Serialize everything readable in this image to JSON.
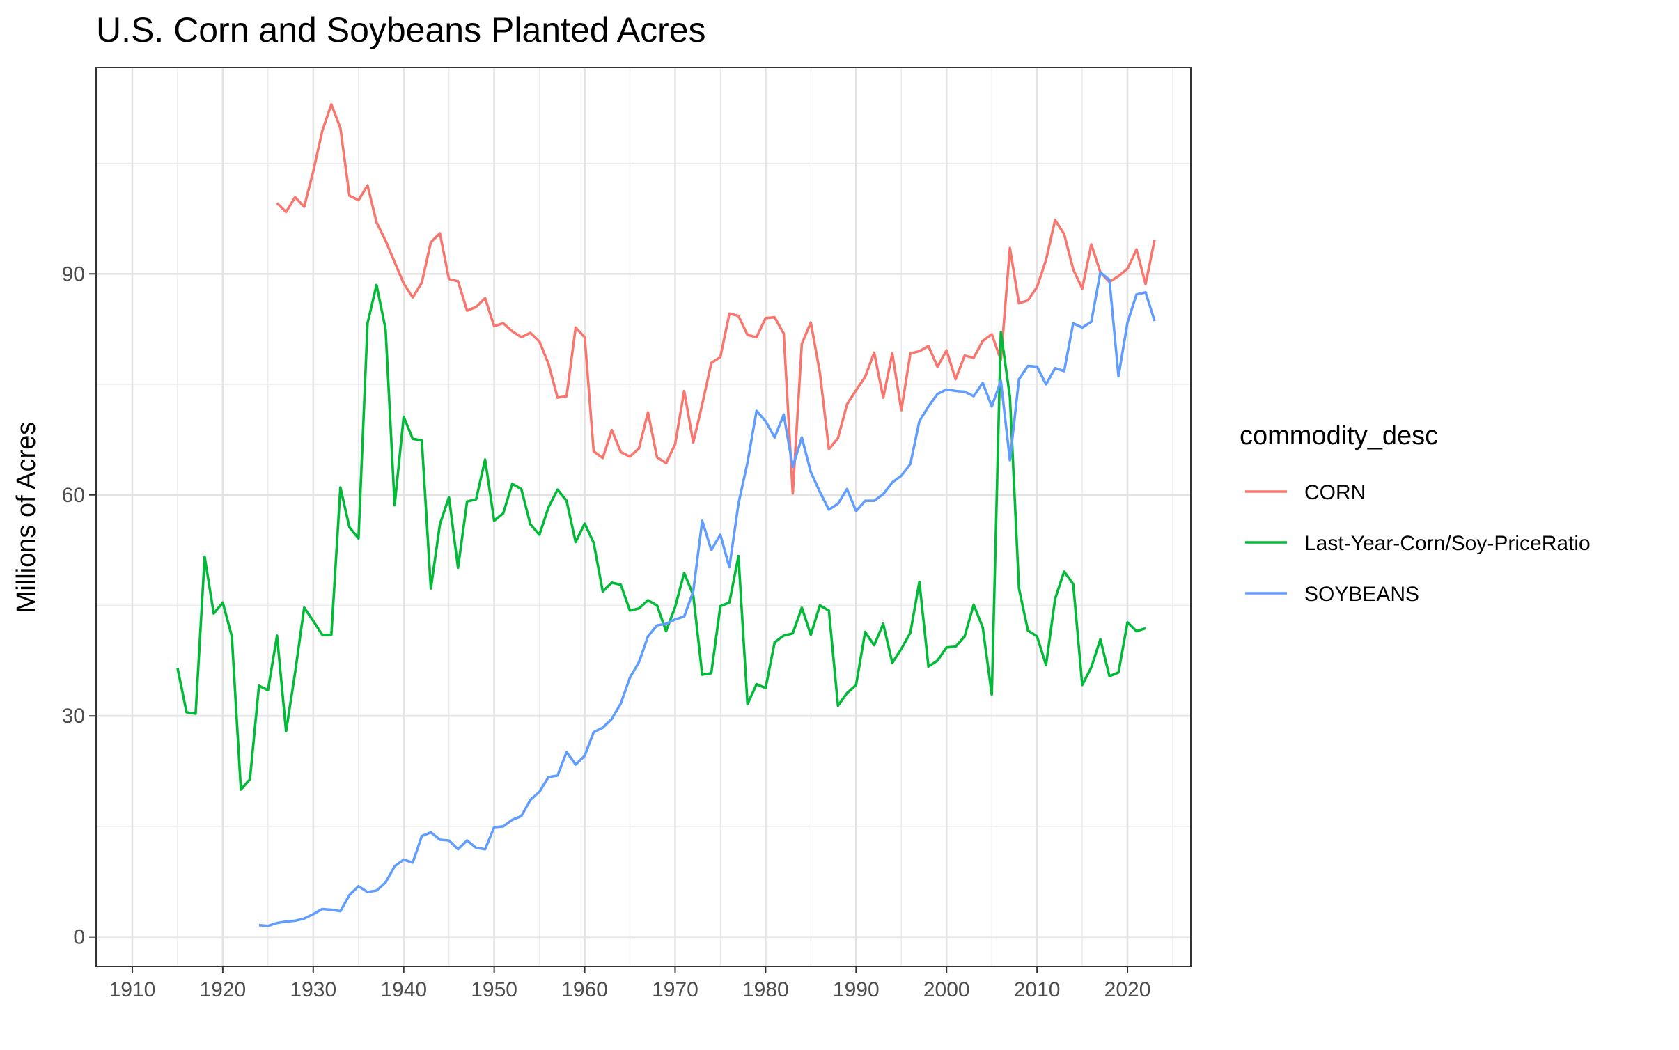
{
  "chart_data": {
    "type": "line",
    "title": "U.S. Corn and Soybeans Planted Acres",
    "xlabel": "",
    "ylabel": "Millions of Acres",
    "xlim": [
      1906,
      2027
    ],
    "ylim": [
      -4,
      118
    ],
    "x_ticks": [
      1910,
      1920,
      1930,
      1940,
      1950,
      1960,
      1970,
      1980,
      1990,
      2000,
      2010,
      2020
    ],
    "x_tick_labels": [
      "1910",
      "1920",
      "1930",
      "1940",
      "1950",
      "1960",
      "1970",
      "1980",
      "1990",
      "2000",
      "2010",
      "2020"
    ],
    "x_minor_ticks": [
      1905,
      1915,
      1925,
      1935,
      1945,
      1955,
      1965,
      1975,
      1985,
      1995,
      2005,
      2015,
      2025
    ],
    "y_ticks": [
      0,
      30,
      60,
      90
    ],
    "y_tick_labels": [
      "0",
      "30",
      "60",
      "90"
    ],
    "y_minor_ticks": [
      15,
      45,
      75,
      105
    ],
    "grid": true,
    "legend": {
      "title": "commodity_desc",
      "position": "right"
    },
    "series": [
      {
        "name": "CORN",
        "color": "#F8766D",
        "x": [
          1926,
          1927,
          1928,
          1929,
          1930,
          1931,
          1932,
          1933,
          1934,
          1935,
          1936,
          1937,
          1938,
          1939,
          1940,
          1941,
          1942,
          1943,
          1944,
          1945,
          1946,
          1947,
          1948,
          1949,
          1950,
          1951,
          1952,
          1953,
          1954,
          1955,
          1956,
          1957,
          1958,
          1959,
          1960,
          1961,
          1962,
          1963,
          1964,
          1965,
          1966,
          1967,
          1968,
          1969,
          1970,
          1971,
          1972,
          1973,
          1974,
          1975,
          1976,
          1977,
          1978,
          1979,
          1980,
          1981,
          1982,
          1983,
          1984,
          1985,
          1986,
          1987,
          1988,
          1989,
          1990,
          1991,
          1992,
          1993,
          1994,
          1995,
          1996,
          1997,
          1998,
          1999,
          2000,
          2001,
          2002,
          2003,
          2004,
          2005,
          2006,
          2007,
          2008,
          2009,
          2010,
          2011,
          2012,
          2013,
          2014,
          2015,
          2016,
          2017,
          2018,
          2019,
          2020,
          2021,
          2022,
          2023
        ],
        "values": [
          99.6,
          98.4,
          100.4,
          99.1,
          103.9,
          109.4,
          113.0,
          109.8,
          100.6,
          100.0,
          102.0,
          97.0,
          94.5,
          91.6,
          88.7,
          86.8,
          88.8,
          94.3,
          95.5,
          89.3,
          89.0,
          85.0,
          85.5,
          86.7,
          82.9,
          83.3,
          82.2,
          81.4,
          82.0,
          80.8,
          77.8,
          73.2,
          73.4,
          82.7,
          81.4,
          65.9,
          65.0,
          68.8,
          65.8,
          65.2,
          66.3,
          71.2,
          65.1,
          64.3,
          66.9,
          74.1,
          67.1,
          72.3,
          77.9,
          78.7,
          84.6,
          84.3,
          81.7,
          81.4,
          84.0,
          84.1,
          81.9,
          60.2,
          80.5,
          83.4,
          76.6,
          66.2,
          67.7,
          72.3,
          74.2,
          76.0,
          79.3,
          73.2,
          79.2,
          71.5,
          79.2,
          79.5,
          80.2,
          77.4,
          79.6,
          75.7,
          78.9,
          78.6,
          80.9,
          81.8,
          78.3,
          93.5,
          86.0,
          86.4,
          88.2,
          91.9,
          97.3,
          95.4,
          90.6,
          88.0,
          94.0,
          90.2,
          88.9,
          89.7,
          90.7,
          93.3,
          88.6,
          94.6
        ]
      },
      {
        "name": "Last-Year-Corn/Soy-PriceRatio",
        "color": "#00BA38",
        "x": [
          1915,
          1916,
          1917,
          1918,
          1919,
          1920,
          1921,
          1922,
          1923,
          1924,
          1925,
          1926,
          1927,
          1928,
          1929,
          1930,
          1931,
          1932,
          1933,
          1934,
          1935,
          1936,
          1937,
          1938,
          1939,
          1940,
          1941,
          1942,
          1943,
          1944,
          1945,
          1946,
          1947,
          1948,
          1949,
          1950,
          1951,
          1952,
          1953,
          1954,
          1955,
          1956,
          1957,
          1958,
          1959,
          1960,
          1961,
          1962,
          1963,
          1964,
          1965,
          1966,
          1967,
          1968,
          1969,
          1970,
          1971,
          1972,
          1973,
          1974,
          1975,
          1976,
          1977,
          1978,
          1979,
          1980,
          1981,
          1982,
          1983,
          1984,
          1985,
          1986,
          1987,
          1988,
          1989,
          1990,
          1991,
          1992,
          1993,
          1994,
          1995,
          1996,
          1997,
          1998,
          1999,
          2000,
          2001,
          2002,
          2003,
          2004,
          2005,
          2006,
          2007,
          2008,
          2009,
          2010,
          2011,
          2012,
          2013,
          2014,
          2015,
          2016,
          2017,
          2018,
          2019,
          2020,
          2021,
          2022
        ],
        "values": [
          36.5,
          30.5,
          30.3,
          51.6,
          43.9,
          45.4,
          40.8,
          20.0,
          21.4,
          34.1,
          33.5,
          40.9,
          27.9,
          35.9,
          44.7,
          42.9,
          41.0,
          41.0,
          61.0,
          55.6,
          54.1,
          83.3,
          88.5,
          82.5,
          58.6,
          70.6,
          67.6,
          67.4,
          47.3,
          56.0,
          59.7,
          50.1,
          59.1,
          59.4,
          64.8,
          56.5,
          57.5,
          61.5,
          60.8,
          56.0,
          54.6,
          58.3,
          60.7,
          59.2,
          53.6,
          56.1,
          53.5,
          46.9,
          48.1,
          47.8,
          44.3,
          44.6,
          45.7,
          45.0,
          41.5,
          44.8,
          49.4,
          46.4,
          35.6,
          35.8,
          44.9,
          45.4,
          51.7,
          31.6,
          34.3,
          33.8,
          40.0,
          40.9,
          41.2,
          44.7,
          41.0,
          45.0,
          44.3,
          31.4,
          33.1,
          34.2,
          41.4,
          39.6,
          42.5,
          37.2,
          39.1,
          41.3,
          48.2,
          36.7,
          37.5,
          39.3,
          39.4,
          40.8,
          45.1,
          42.0,
          32.9,
          82.1,
          73.3,
          47.3,
          41.6,
          40.8,
          36.9,
          45.9,
          49.6,
          47.9,
          34.2,
          36.6,
          40.4,
          35.4,
          35.9,
          42.7,
          41.5,
          41.9
        ]
      },
      {
        "name": "SOYBEANS",
        "color": "#619CFF",
        "x": [
          1924,
          1925,
          1926,
          1927,
          1928,
          1929,
          1930,
          1931,
          1932,
          1933,
          1934,
          1935,
          1936,
          1937,
          1938,
          1939,
          1940,
          1941,
          1942,
          1943,
          1944,
          1945,
          1946,
          1947,
          1948,
          1949,
          1950,
          1951,
          1952,
          1953,
          1954,
          1955,
          1956,
          1957,
          1958,
          1959,
          1960,
          1961,
          1962,
          1963,
          1964,
          1965,
          1966,
          1967,
          1968,
          1969,
          1970,
          1971,
          1972,
          1973,
          1974,
          1975,
          1976,
          1977,
          1978,
          1979,
          1980,
          1981,
          1982,
          1983,
          1984,
          1985,
          1986,
          1987,
          1988,
          1989,
          1990,
          1991,
          1992,
          1993,
          1994,
          1995,
          1996,
          1997,
          1998,
          1999,
          2000,
          2001,
          2002,
          2003,
          2004,
          2005,
          2006,
          2007,
          2008,
          2009,
          2010,
          2011,
          2012,
          2013,
          2014,
          2015,
          2016,
          2017,
          2018,
          2019,
          2020,
          2021,
          2022,
          2023
        ],
        "values": [
          1.6,
          1.5,
          1.9,
          2.1,
          2.2,
          2.5,
          3.1,
          3.8,
          3.7,
          3.5,
          5.7,
          6.9,
          6.1,
          6.3,
          7.4,
          9.6,
          10.5,
          10.1,
          13.7,
          14.2,
          13.2,
          13.1,
          11.9,
          13.1,
          12.1,
          11.9,
          14.9,
          15.0,
          15.9,
          16.4,
          18.6,
          19.7,
          21.7,
          21.9,
          25.1,
          23.4,
          24.6,
          27.8,
          28.4,
          29.6,
          31.7,
          35.2,
          37.3,
          40.8,
          42.3,
          42.5,
          43.1,
          43.5,
          46.9,
          56.5,
          52.5,
          54.6,
          50.2,
          58.8,
          64.4,
          71.4,
          70.0,
          67.8,
          70.9,
          63.8,
          67.8,
          63.1,
          60.4,
          58.0,
          58.8,
          60.8,
          57.8,
          59.2,
          59.2,
          60.1,
          61.7,
          62.6,
          64.2,
          70.0,
          72.0,
          73.7,
          74.3,
          74.1,
          74.0,
          73.4,
          75.2,
          72.0,
          75.5,
          64.7,
          75.7,
          77.5,
          77.4,
          75.0,
          77.2,
          76.8,
          83.3,
          82.7,
          83.5,
          90.2,
          89.2,
          76.1,
          83.4,
          87.2,
          87.5,
          83.6
        ]
      }
    ]
  }
}
